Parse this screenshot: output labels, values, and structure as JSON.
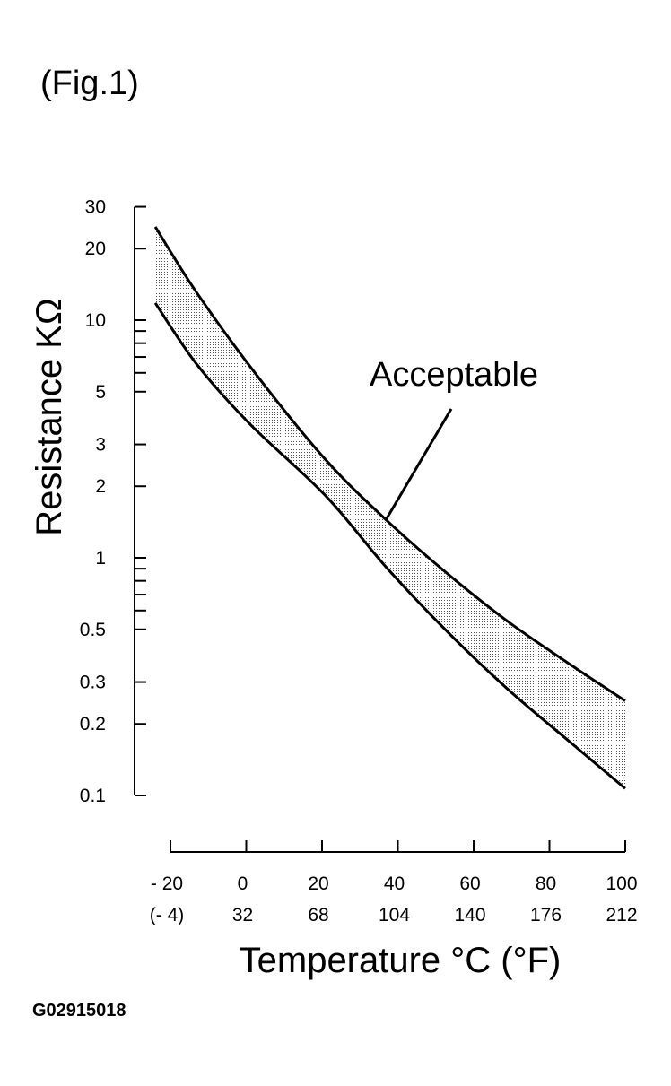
{
  "figure_label": "(Fig.1)",
  "figure_code": "G02915018",
  "chart_data": {
    "type": "area",
    "title": "",
    "xlabel": "Temperature °C (°F)",
    "ylabel": "Resistance KΩ",
    "yscale": "log",
    "ylim": [
      0.1,
      30
    ],
    "xlim": [
      -20,
      100
    ],
    "grid": false,
    "y_ticks": [
      30,
      20,
      10,
      5,
      3,
      2,
      1,
      0.5,
      0.3,
      0.2,
      0.1
    ],
    "y_tick_labels": [
      "30",
      "20",
      "10",
      "5",
      "3",
      "2",
      "1",
      "0.5",
      "0.3",
      "0.2",
      "0.1"
    ],
    "y_minor_ticks": [
      9,
      8,
      7,
      6,
      0.9,
      0.8,
      0.7,
      0.6
    ],
    "x_ticks": [
      -20,
      0,
      20,
      40,
      60,
      80,
      100
    ],
    "x_tick_labels_c": [
      "- 20",
      "0",
      "20",
      "40",
      "60",
      "80",
      "100"
    ],
    "x_tick_labels_f": [
      "(- 4)",
      "32",
      "68",
      "104",
      "140",
      "176",
      "212"
    ],
    "annotation": "Acceptable",
    "fill_color": "#b0b0b0",
    "series": [
      {
        "role": "upper-limit",
        "x": [
          -24,
          -13,
          3,
          21,
          37,
          53,
          69,
          85,
          100
        ],
        "y": [
          24.7,
          13.0,
          5.8,
          2.58,
          1.44,
          0.86,
          0.54,
          0.36,
          0.25
        ]
      },
      {
        "role": "lower-limit",
        "x": [
          -24,
          -13,
          1,
          21,
          37,
          53,
          69,
          85,
          100
        ],
        "y": [
          11.8,
          6.5,
          3.65,
          1.82,
          0.91,
          0.49,
          0.28,
          0.17,
          0.107
        ]
      }
    ]
  }
}
